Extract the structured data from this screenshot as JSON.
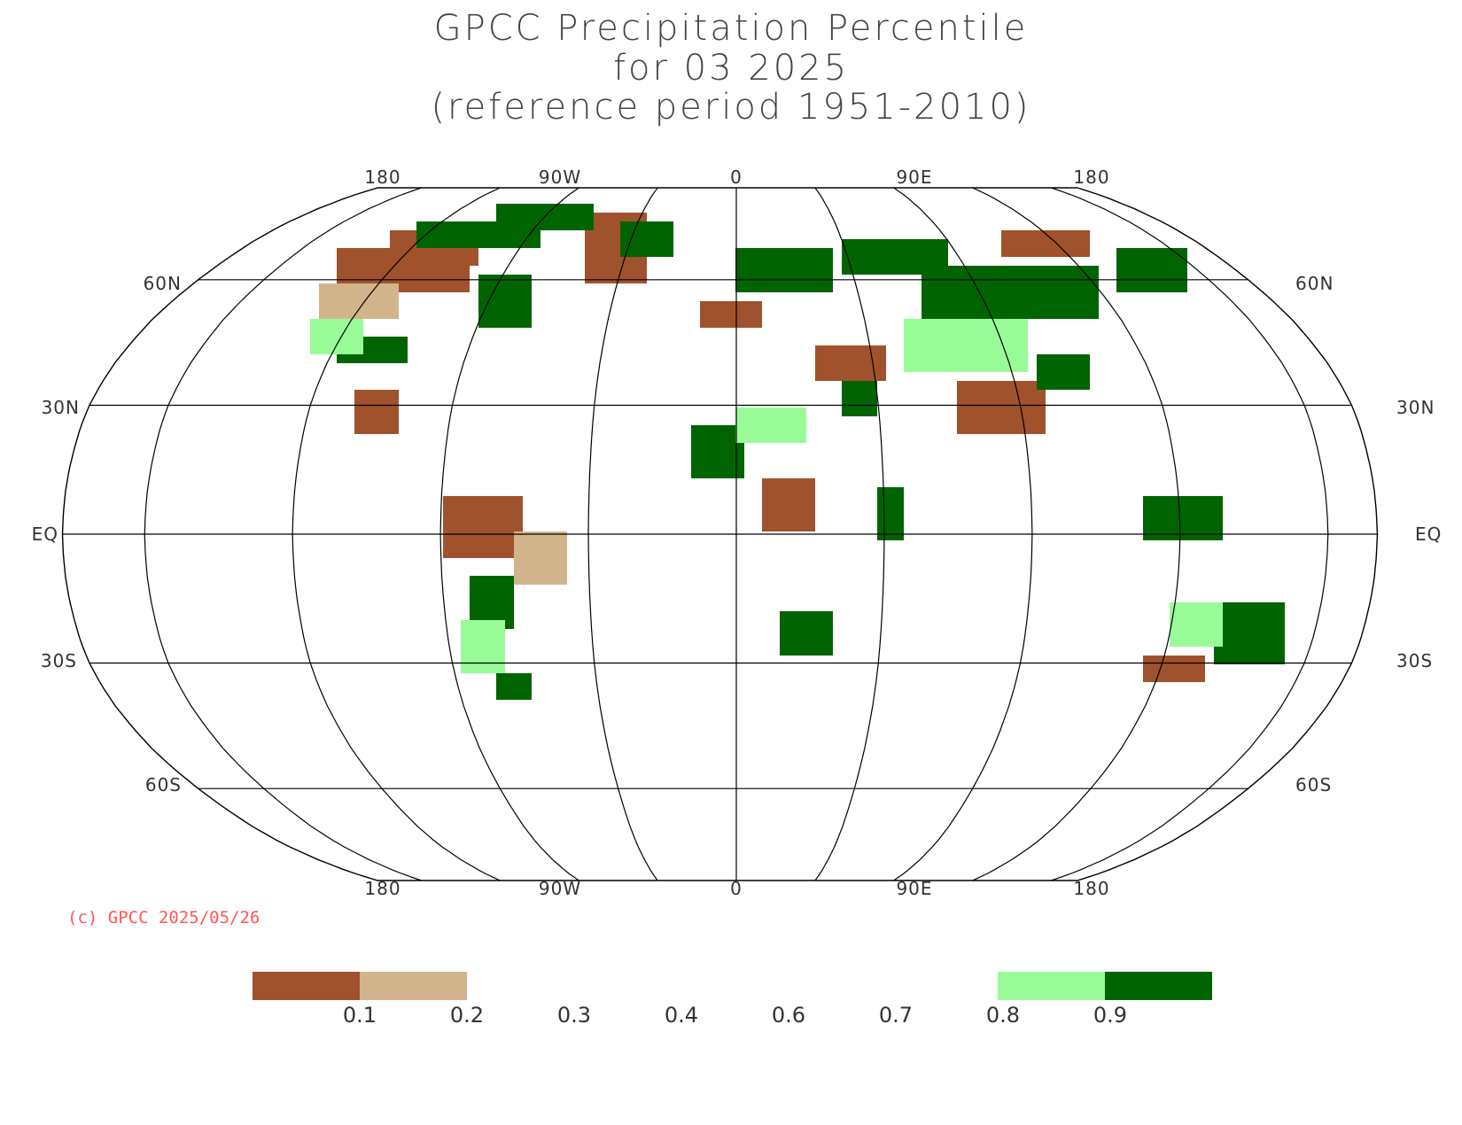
{
  "title": {
    "line1": "GPCC Precipitation Percentile",
    "line2": "for 03 2025",
    "line3": "(reference period 1951-2010)"
  },
  "copyright": "(c) GPCC 2025/05/26",
  "axes": {
    "lon_top": [
      "180",
      "90W",
      "0",
      "90E",
      "180"
    ],
    "lon_bottom": [
      "180",
      "90W",
      "0",
      "90E",
      "180"
    ],
    "lat_left": [
      "60N",
      "30N",
      "EQ",
      "30S",
      "60S"
    ],
    "lat_right": [
      "60N",
      "30N",
      "EQ",
      "30S",
      "60S"
    ]
  },
  "legend": {
    "ticks": [
      "0.1",
      "0.2",
      "0.3",
      "0.4",
      "0.6",
      "0.7",
      "0.8",
      "0.9"
    ],
    "colors": {
      "very_dry": "#a0522d",
      "dry": "#d2b48c",
      "wet": "#98fb98",
      "very_wet": "#006400"
    }
  }
}
